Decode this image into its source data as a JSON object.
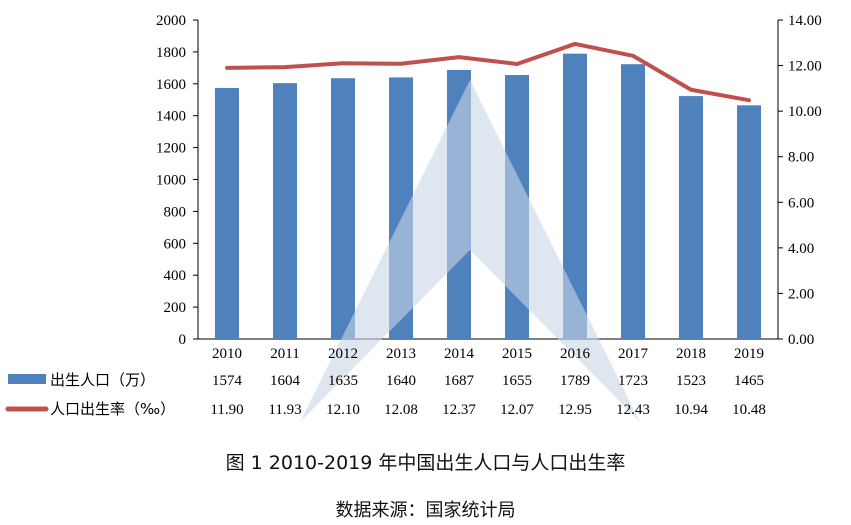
{
  "chart_data": {
    "type": "bar+line",
    "categories": [
      "2010",
      "2011",
      "2012",
      "2013",
      "2014",
      "2015",
      "2016",
      "2017",
      "2018",
      "2019"
    ],
    "series": [
      {
        "name": "出生人口（万）",
        "type": "bar",
        "axis": "left",
        "values": [
          "1574",
          "1604",
          "1635",
          "1640",
          "1687",
          "1655",
          "1789",
          "1723",
          "1523",
          "1465"
        ],
        "color": "#4f81bd"
      },
      {
        "name": "人口出生率（‰）",
        "type": "line",
        "axis": "right",
        "values": [
          "11.90",
          "11.93",
          "12.10",
          "12.08",
          "12.37",
          "12.07",
          "12.95",
          "12.43",
          "10.94",
          "10.48"
        ],
        "color": "#c0504d"
      }
    ],
    "y_left": {
      "ticks": [
        "0",
        "200",
        "400",
        "600",
        "800",
        "1000",
        "1200",
        "1400",
        "1600",
        "1800",
        "2000"
      ],
      "range": [
        0,
        2000
      ]
    },
    "y_right": {
      "ticks": [
        "0.00",
        "2.00",
        "4.00",
        "6.00",
        "8.00",
        "10.00",
        "12.00",
        "14.00"
      ],
      "range": [
        0,
        14
      ]
    },
    "table_rows": true
  },
  "caption": {
    "title": "图 1 2010-2019 年中国出生人口与人口出生率",
    "source": "数据来源：国家统计局"
  },
  "legend": {
    "births_label": "出生人口（万）",
    "rate_label": "人口出生率（‰）"
  }
}
